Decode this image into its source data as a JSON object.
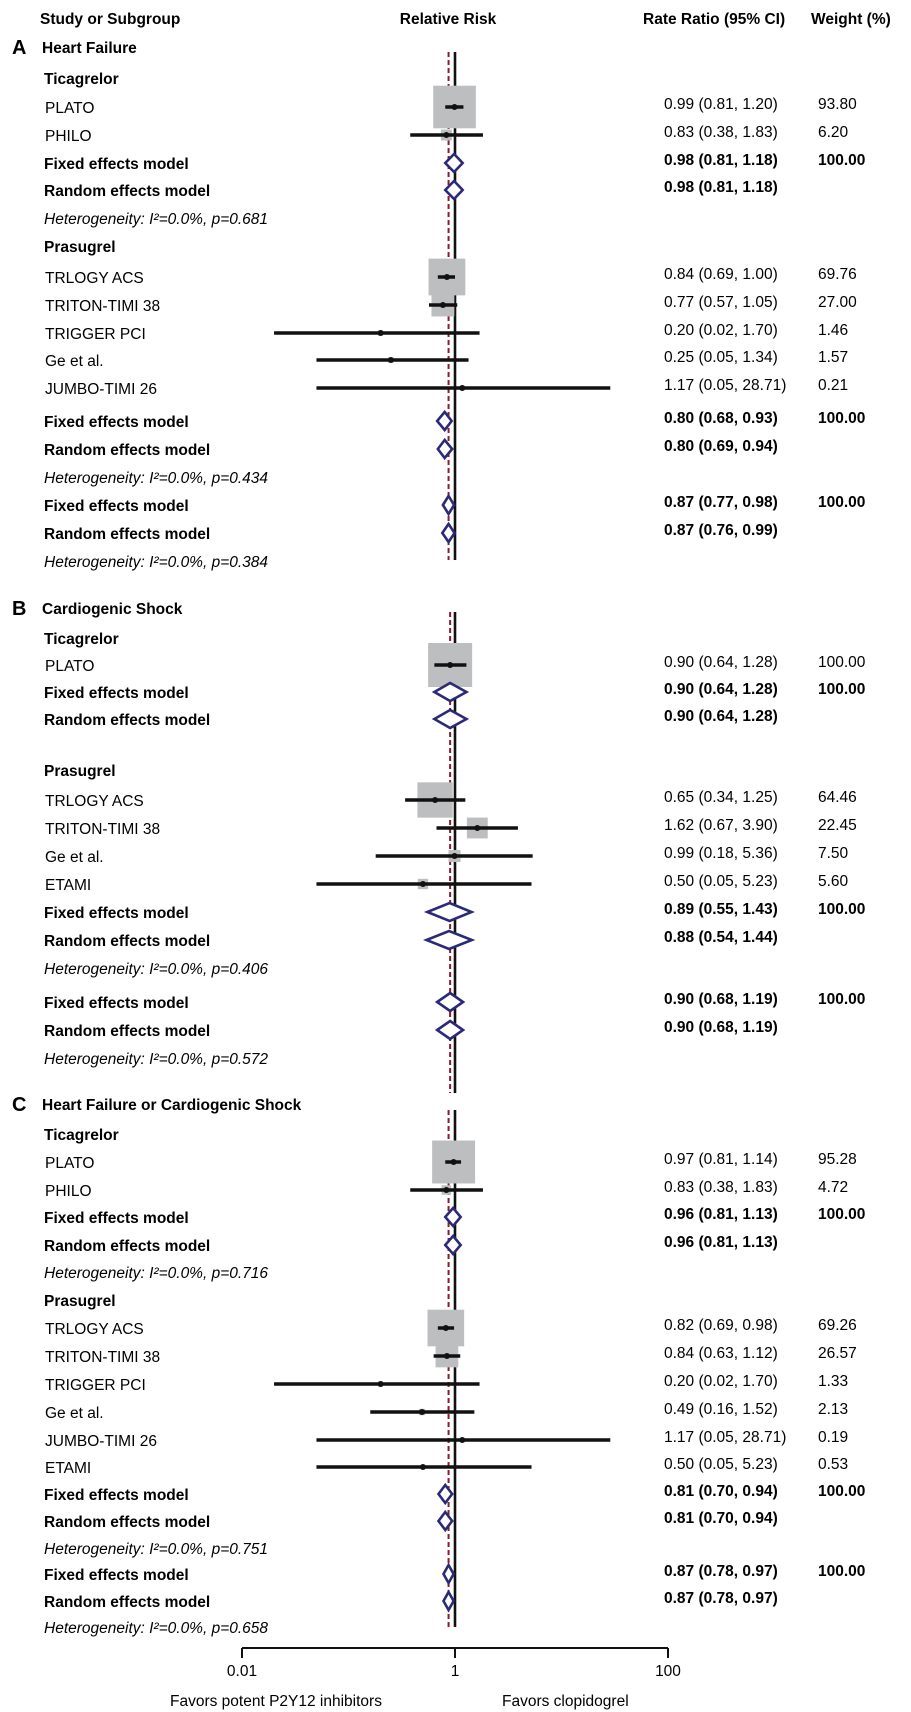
{
  "headers": {
    "study": "Study or Subgroup",
    "risk": "Relative Risk",
    "ci": "Rate Ratio (95% CI)",
    "weight": "Weight  (%)"
  },
  "axis": {
    "scale": "log",
    "ticks": [
      "0.01",
      "1",
      "100"
    ],
    "left_label": "Favors potent P2Y12 inhibitors",
    "right_label": "Favors clopidogrel"
  },
  "colors": {
    "box": "#bcbec0",
    "diamond": "#2b2a78",
    "line": "#111111",
    "null_line": "#111111",
    "pooled_line": "#8b1a2b"
  },
  "chart_data": {
    "type": "forest",
    "x_scale": "log",
    "xlim": [
      0.01,
      100
    ],
    "panels": [
      {
        "letter": "A",
        "title": "Heart Failure",
        "pooled_rr": 0.87,
        "rows": [
          {
            "kind": "subgroup",
            "label": "Ticagrelor"
          },
          {
            "kind": "study",
            "label": "PLATO",
            "rr": 0.99,
            "lo": 0.81,
            "hi": 1.2,
            "ci_text": "0.99 (0.81, 1.20)",
            "weight": "93.80",
            "w": 93.8
          },
          {
            "kind": "study",
            "label": "PHILO",
            "rr": 0.83,
            "lo": 0.38,
            "hi": 1.83,
            "ci_text": "0.83 (0.38, 1.83)",
            "weight": "6.20",
            "w": 6.2
          },
          {
            "kind": "fixed",
            "label": "Fixed effects model",
            "rr": 0.98,
            "lo": 0.81,
            "hi": 1.18,
            "ci_text": "0.98 (0.81, 1.18)",
            "weight": "100.00"
          },
          {
            "kind": "random",
            "label": "Random effects model",
            "rr": 0.98,
            "lo": 0.81,
            "hi": 1.18,
            "ci_text": "0.98 (0.81, 1.18)",
            "weight": ""
          },
          {
            "kind": "het",
            "label": "Heterogeneity: I²=0.0%, p=0.681"
          },
          {
            "kind": "subgroup",
            "label": "Prasugrel"
          },
          {
            "kind": "study",
            "label": "TRLOGY ACS",
            "rr": 0.84,
            "lo": 0.69,
            "hi": 1.0,
            "ci_text": "0.84 (0.69, 1.00)",
            "weight": "69.76",
            "w": 69.76
          },
          {
            "kind": "study",
            "label": "TRITON-TIMI 38",
            "rr": 0.77,
            "lo": 0.57,
            "hi": 1.05,
            "ci_text": "0.77 (0.57, 1.05)",
            "weight": "27.00",
            "w": 27.0
          },
          {
            "kind": "study",
            "label": "TRIGGER PCI",
            "rr": 0.2,
            "lo": 0.02,
            "hi": 1.7,
            "ci_text": "0.20 (0.02, 1.70)",
            "weight": "1.46",
            "w": 1.46
          },
          {
            "kind": "study",
            "label": "Ge et al.",
            "rr": 0.25,
            "lo": 0.05,
            "hi": 1.34,
            "ci_text": "0.25 (0.05, 1.34)",
            "weight": "1.57",
            "w": 1.57
          },
          {
            "kind": "study",
            "label": "JUMBO-TIMI 26",
            "rr": 1.17,
            "lo": 0.05,
            "hi": 28.71,
            "ci_text": "1.17 (0.05, 28.71)",
            "weight": "0.21",
            "w": 0.21
          },
          {
            "kind": "fixed",
            "label": "Fixed effects model",
            "rr": 0.8,
            "lo": 0.68,
            "hi": 0.93,
            "ci_text": "0.80 (0.68, 0.93)",
            "weight": "100.00"
          },
          {
            "kind": "random",
            "label": "Random effects model",
            "rr": 0.8,
            "lo": 0.69,
            "hi": 0.94,
            "ci_text": "0.80 (0.69, 0.94)",
            "weight": ""
          },
          {
            "kind": "het",
            "label": "Heterogeneity: I²=0.0%, p=0.434"
          },
          {
            "kind": "fixed",
            "label": "Fixed effects model",
            "rr": 0.87,
            "lo": 0.77,
            "hi": 0.98,
            "ci_text": "0.87 (0.77, 0.98)",
            "weight": "100.00"
          },
          {
            "kind": "random",
            "label": "Random effects model",
            "rr": 0.87,
            "lo": 0.76,
            "hi": 0.99,
            "ci_text": "0.87 (0.76, 0.99)",
            "weight": ""
          },
          {
            "kind": "het",
            "label": "Heterogeneity: I²=0.0%, p=0.384"
          }
        ]
      },
      {
        "letter": "B",
        "title": "Cardiogenic Shock",
        "pooled_rr": 0.9,
        "rows": [
          {
            "kind": "subgroup",
            "label": "Ticagrelor"
          },
          {
            "kind": "study",
            "label": "PLATO",
            "rr": 0.9,
            "lo": 0.64,
            "hi": 1.28,
            "ci_text": "0.90 (0.64, 1.28)",
            "weight": "100.00",
            "w": 100.0
          },
          {
            "kind": "fixed",
            "label": "Fixed effects model",
            "rr": 0.9,
            "lo": 0.64,
            "hi": 1.28,
            "ci_text": "0.90 (0.64, 1.28)",
            "weight": "100.00"
          },
          {
            "kind": "random",
            "label": "Random effects model",
            "rr": 0.9,
            "lo": 0.64,
            "hi": 1.28,
            "ci_text": "0.90 (0.64, 1.28)",
            "weight": ""
          },
          {
            "kind": "subgroup",
            "label": "Prasugrel"
          },
          {
            "kind": "study",
            "label": "TRLOGY ACS",
            "rr": 0.65,
            "lo": 0.34,
            "hi": 1.25,
            "ci_text": "0.65 (0.34, 1.25)",
            "weight": "64.46",
            "w": 64.46
          },
          {
            "kind": "study",
            "label": "TRITON-TIMI 38",
            "rr": 1.62,
            "lo": 0.67,
            "hi": 3.9,
            "ci_text": "1.62 (0.67, 3.90)",
            "weight": "22.45",
            "w": 22.45
          },
          {
            "kind": "study",
            "label": "Ge et al.",
            "rr": 0.99,
            "lo": 0.18,
            "hi": 5.36,
            "ci_text": "0.99 (0.18, 5.36)",
            "weight": "7.50",
            "w": 7.5
          },
          {
            "kind": "study",
            "label": "ETAMI",
            "rr": 0.5,
            "lo": 0.05,
            "hi": 5.23,
            "ci_text": "0.50 (0.05, 5.23)",
            "weight": "5.60",
            "w": 5.6
          },
          {
            "kind": "fixed",
            "label": "Fixed effects model",
            "rr": 0.89,
            "lo": 0.55,
            "hi": 1.43,
            "ci_text": "0.89 (0.55, 1.43)",
            "weight": "100.00"
          },
          {
            "kind": "random",
            "label": "Random effects model",
            "rr": 0.88,
            "lo": 0.54,
            "hi": 1.44,
            "ci_text": "0.88 (0.54, 1.44)",
            "weight": ""
          },
          {
            "kind": "het",
            "label": "Heterogeneity: I²=0.0%, p=0.406"
          },
          {
            "kind": "fixed",
            "label": "Fixed effects model",
            "rr": 0.9,
            "lo": 0.68,
            "hi": 1.19,
            "ci_text": "0.90 (0.68, 1.19)",
            "weight": "100.00"
          },
          {
            "kind": "random",
            "label": "Random effects model",
            "rr": 0.9,
            "lo": 0.68,
            "hi": 1.19,
            "ci_text": "0.90 (0.68, 1.19)",
            "weight": ""
          },
          {
            "kind": "het",
            "label": "Heterogeneity: I²=0.0%, p=0.572"
          }
        ]
      },
      {
        "letter": "C",
        "title": "Heart Failure or Cardiogenic Shock",
        "pooled_rr": 0.87,
        "rows": [
          {
            "kind": "subgroup",
            "label": "Ticagrelor"
          },
          {
            "kind": "study",
            "label": "PLATO",
            "rr": 0.97,
            "lo": 0.81,
            "hi": 1.14,
            "ci_text": "0.97 (0.81, 1.14)",
            "weight": "95.28",
            "w": 95.28
          },
          {
            "kind": "study",
            "label": "PHILO",
            "rr": 0.83,
            "lo": 0.38,
            "hi": 1.83,
            "ci_text": "0.83 (0.38, 1.83)",
            "weight": "4.72",
            "w": 4.72
          },
          {
            "kind": "fixed",
            "label": "Fixed effects model",
            "rr": 0.96,
            "lo": 0.81,
            "hi": 1.13,
            "ci_text": "0.96 (0.81, 1.13)",
            "weight": "100.00"
          },
          {
            "kind": "random",
            "label": "Random effects model",
            "rr": 0.96,
            "lo": 0.81,
            "hi": 1.13,
            "ci_text": "0.96 (0.81, 1.13)",
            "weight": ""
          },
          {
            "kind": "het",
            "label": "Heterogeneity: I²=0.0%, p=0.716"
          },
          {
            "kind": "subgroup",
            "label": "Prasugrel"
          },
          {
            "kind": "study",
            "label": "TRLOGY ACS",
            "rr": 0.82,
            "lo": 0.69,
            "hi": 0.98,
            "ci_text": "0.82 (0.69, 0.98)",
            "weight": "69.26",
            "w": 69.26
          },
          {
            "kind": "study",
            "label": "TRITON-TIMI 38",
            "rr": 0.84,
            "lo": 0.63,
            "hi": 1.12,
            "ci_text": "0.84 (0.63, 1.12)",
            "weight": "26.57",
            "w": 26.57
          },
          {
            "kind": "study",
            "label": "TRIGGER PCI",
            "rr": 0.2,
            "lo": 0.02,
            "hi": 1.7,
            "ci_text": "0.20 (0.02, 1.70)",
            "weight": "1.33",
            "w": 1.33
          },
          {
            "kind": "study",
            "label": "Ge et al.",
            "rr": 0.49,
            "lo": 0.16,
            "hi": 1.52,
            "ci_text": "0.49 (0.16, 1.52)",
            "weight": "2.13",
            "w": 2.13
          },
          {
            "kind": "study",
            "label": "JUMBO-TIMI 26",
            "rr": 1.17,
            "lo": 0.05,
            "hi": 28.71,
            "ci_text": "1.17 (0.05, 28.71)",
            "weight": "0.19",
            "w": 0.19
          },
          {
            "kind": "study",
            "label": "ETAMI",
            "rr": 0.5,
            "lo": 0.05,
            "hi": 5.23,
            "ci_text": "0.50 (0.05, 5.23)",
            "weight": "0.53",
            "w": 0.53
          },
          {
            "kind": "fixed",
            "label": "Fixed effects model",
            "rr": 0.81,
            "lo": 0.7,
            "hi": 0.94,
            "ci_text": "0.81 (0.70, 0.94)",
            "weight": "100.00"
          },
          {
            "kind": "random",
            "label": "Random effects model",
            "rr": 0.81,
            "lo": 0.7,
            "hi": 0.94,
            "ci_text": "0.81 (0.70, 0.94)",
            "weight": ""
          },
          {
            "kind": "het",
            "label": "Heterogeneity: I²=0.0%, p=0.751"
          },
          {
            "kind": "fixed",
            "label": "Fixed effects model",
            "rr": 0.87,
            "lo": 0.78,
            "hi": 0.97,
            "ci_text": "0.87 (0.78, 0.97)",
            "weight": "100.00"
          },
          {
            "kind": "random",
            "label": "Random effects model",
            "rr": 0.87,
            "lo": 0.78,
            "hi": 0.97,
            "ci_text": "0.87 (0.78, 0.97)",
            "weight": ""
          },
          {
            "kind": "het",
            "label": "Heterogeneity: I²=0.0%, p=0.658"
          }
        ]
      }
    ]
  }
}
